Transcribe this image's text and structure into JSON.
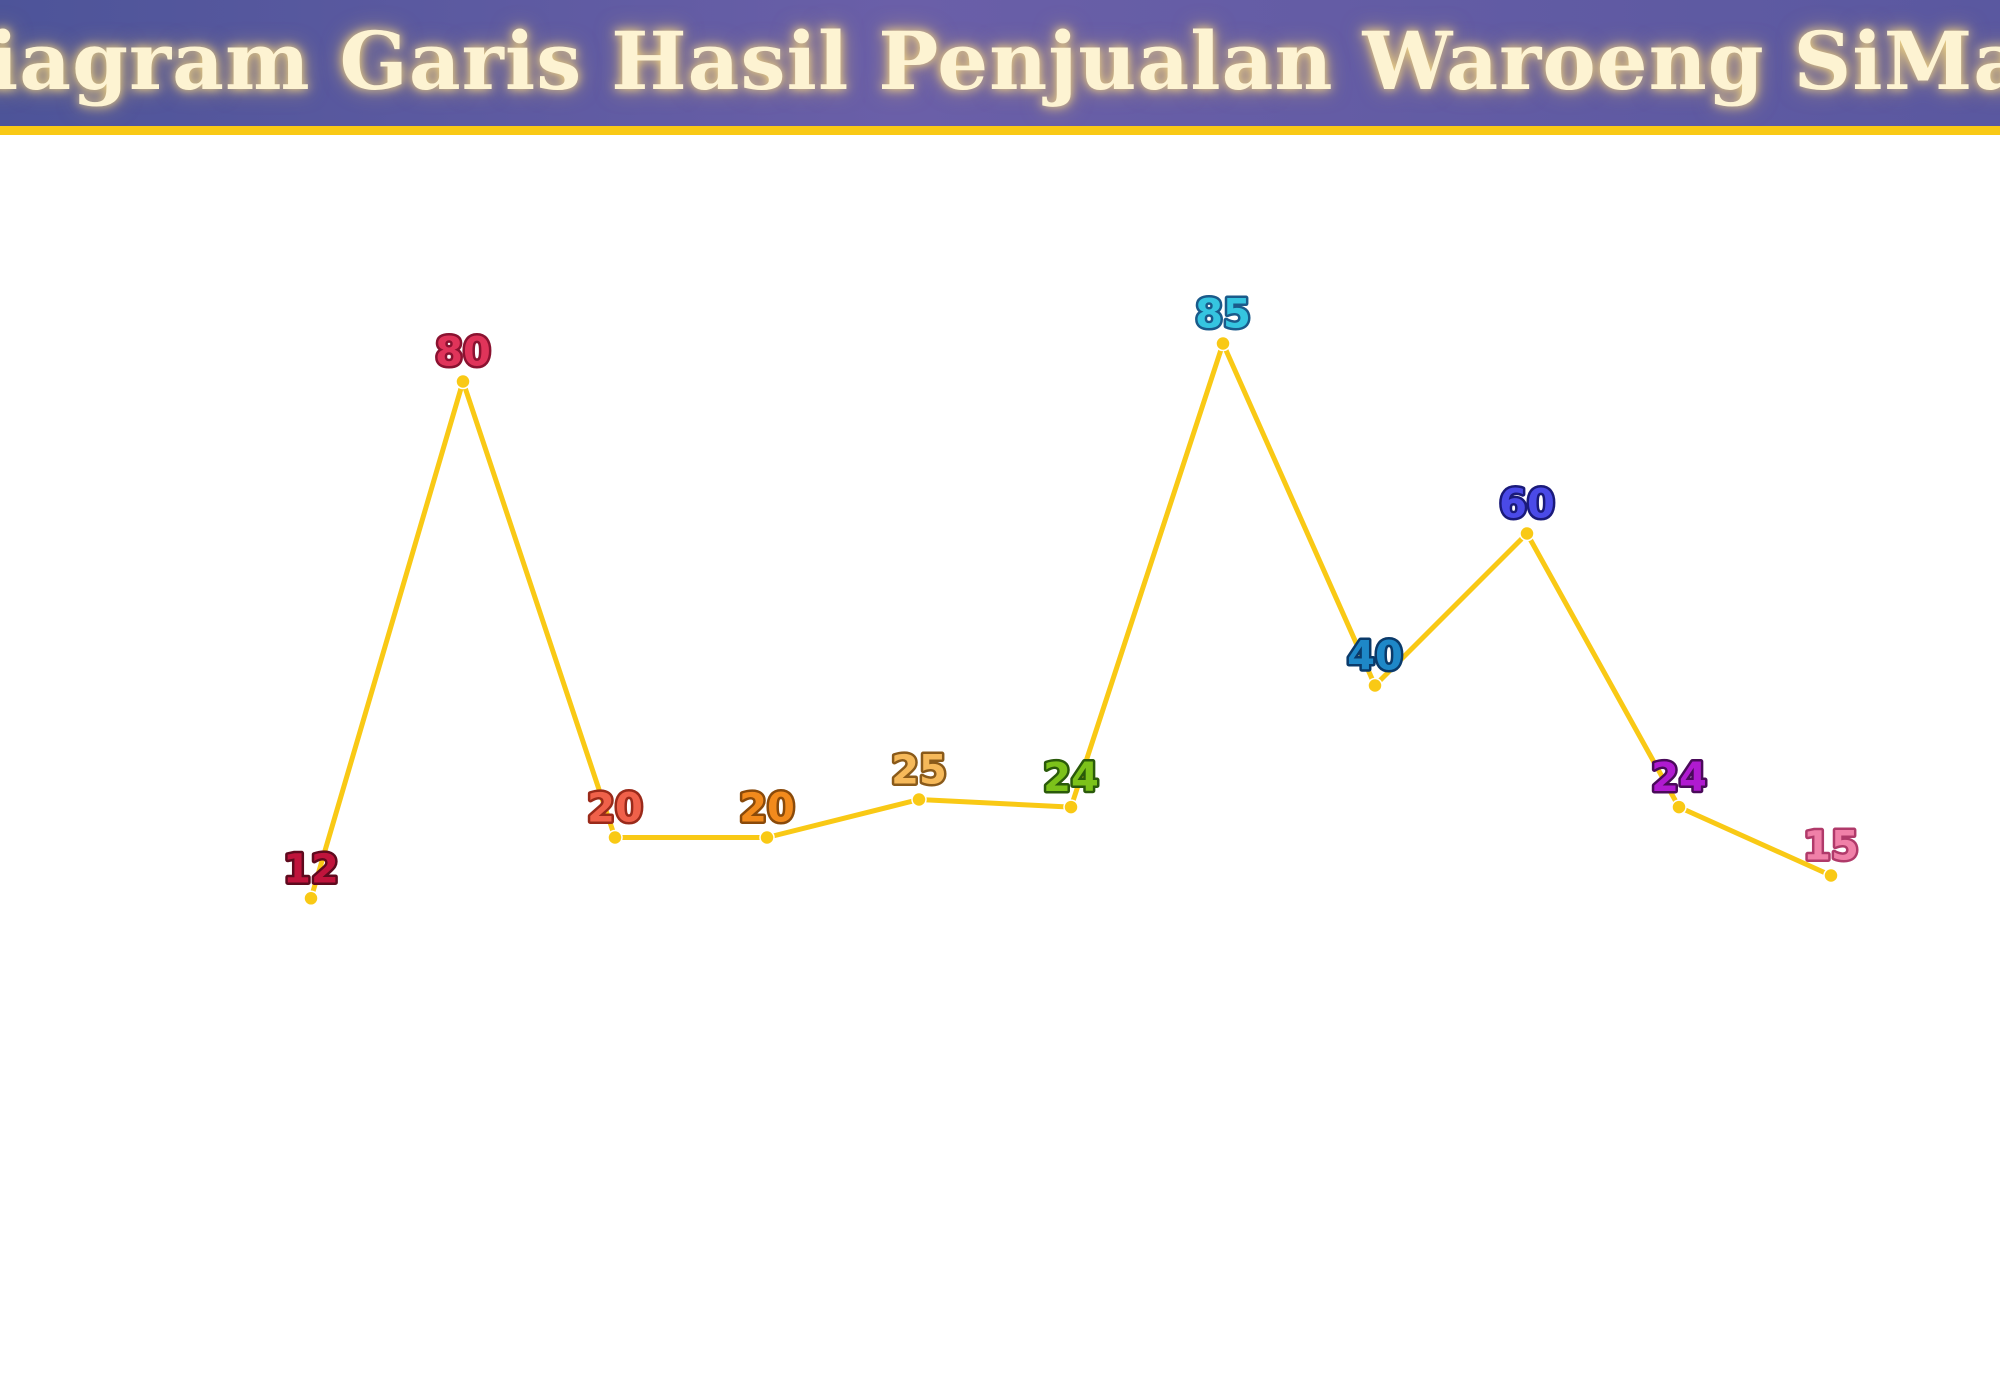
{
  "header": {
    "title": "Diagram Garis Hasil Penjualan Waroeng SiMak"
  },
  "colors": {
    "header_bg": "#5a58a0",
    "header_rule": "#f9c915",
    "line": "#f9c915",
    "title_text": "#fdf3d2"
  },
  "chart_data": {
    "type": "line",
    "title": "Diagram Garis Hasil Penjualan Waroeng SiMak",
    "xlabel": "",
    "ylabel": "",
    "grid": false,
    "legend": "none",
    "ylim": [
      0,
      100
    ],
    "x": [
      1,
      2,
      3,
      4,
      5,
      6,
      7,
      8,
      9,
      10,
      11
    ],
    "series": [
      {
        "values": [
          12,
          80,
          20,
          20,
          25,
          24,
          85,
          40,
          60,
          24,
          15
        ],
        "labels": [
          "12",
          "80",
          "20",
          "20",
          "25",
          "24",
          "85",
          "40",
          "60",
          "24",
          "15"
        ],
        "label_colors": [
          {
            "fill": "#c0143c",
            "stroke": "#5e0a1e"
          },
          {
            "fill": "#e0345a",
            "stroke": "#8a1230"
          },
          {
            "fill": "#f0614a",
            "stroke": "#9a2a1a"
          },
          {
            "fill": "#f28a1c",
            "stroke": "#8a4a0a"
          },
          {
            "fill": "#f6b95a",
            "stroke": "#8a5a1a"
          },
          {
            "fill": "#7cc21a",
            "stroke": "#2a5a0a"
          },
          {
            "fill": "#35c5e0",
            "stroke": "#1a5a8a"
          },
          {
            "fill": "#1e88c8",
            "stroke": "#0a3a6a"
          },
          {
            "fill": "#4a4ae8",
            "stroke": "#1a1a7a"
          },
          {
            "fill": "#b01ad0",
            "stroke": "#4a0a5a"
          },
          {
            "fill": "#f080a8",
            "stroke": "#b03a6a"
          }
        ]
      }
    ]
  }
}
